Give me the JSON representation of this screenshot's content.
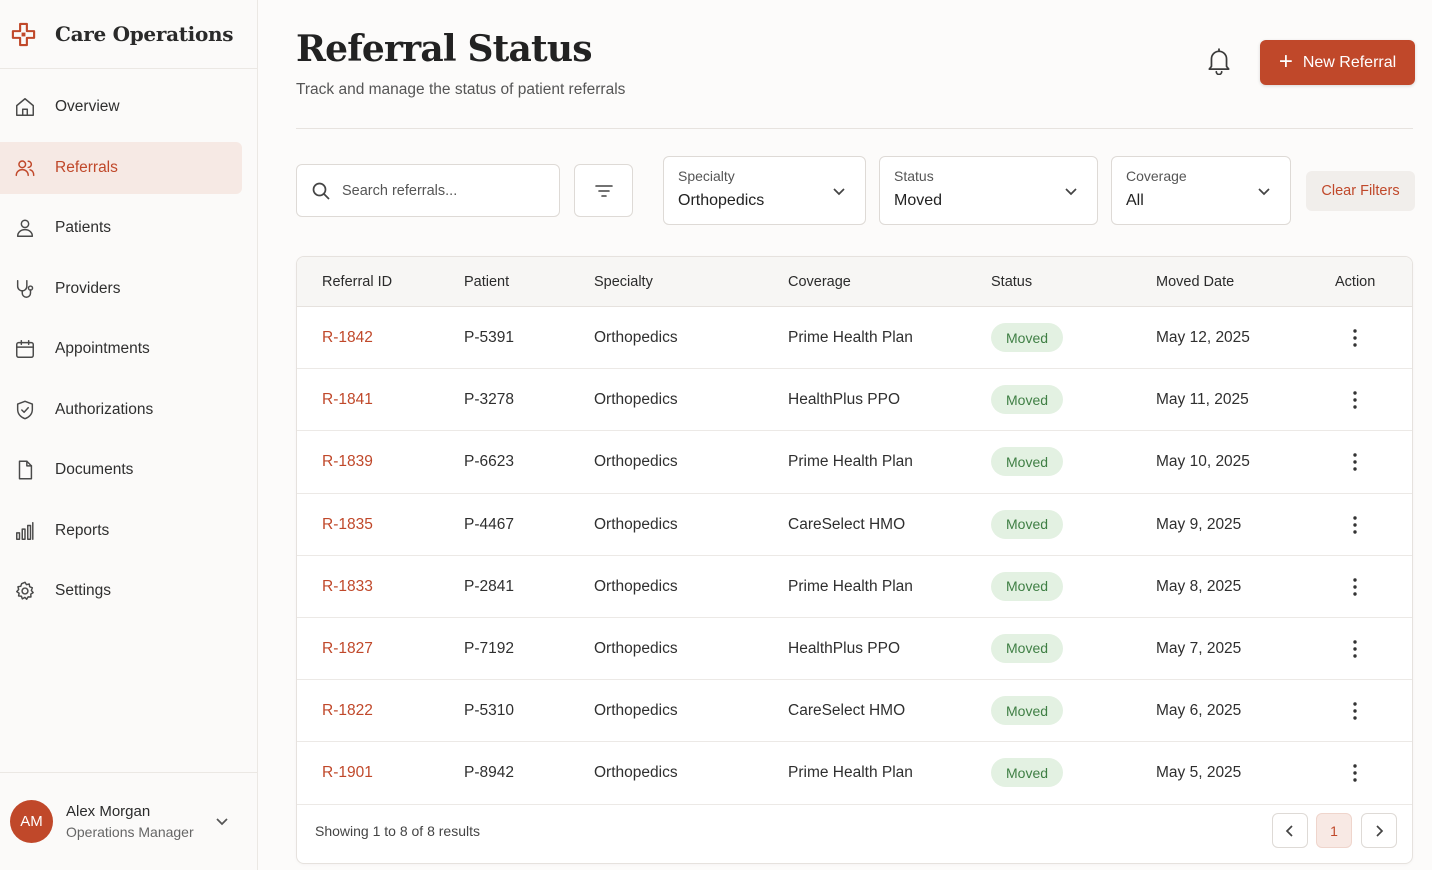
{
  "brand": {
    "title": "Care Operations",
    "icon": "medical-cross-icon",
    "accent": "#c0482a"
  },
  "sidebar": {
    "items": [
      {
        "label": "Overview",
        "icon": "home-icon",
        "active": false
      },
      {
        "label": "Referrals",
        "icon": "users-icon",
        "active": true
      },
      {
        "label": "Patients",
        "icon": "user-icon",
        "active": false
      },
      {
        "label": "Providers",
        "icon": "stethoscope-icon",
        "active": false
      },
      {
        "label": "Appointments",
        "icon": "calendar-icon",
        "active": false
      },
      {
        "label": "Authorizations",
        "icon": "shield-check-icon",
        "active": false
      },
      {
        "label": "Documents",
        "icon": "file-icon",
        "active": false
      },
      {
        "label": "Reports",
        "icon": "bar-chart-icon",
        "active": false
      },
      {
        "label": "Settings",
        "icon": "gear-icon",
        "active": false
      }
    ]
  },
  "user": {
    "initials": "AM",
    "name": "Alex Morgan",
    "role": "Operations Manager"
  },
  "header": {
    "title": "Referral Status",
    "subtitle": "Track and manage the status of patient referrals",
    "new_button": "New Referral"
  },
  "filters": {
    "search_placeholder": "Search referrals...",
    "specialty": {
      "label": "Specialty",
      "value": "Orthopedics"
    },
    "status": {
      "label": "Status",
      "value": "Moved"
    },
    "coverage": {
      "label": "Coverage",
      "value": "All"
    },
    "clear_label": "Clear Filters"
  },
  "table": {
    "columns": [
      "Referral ID",
      "Patient",
      "Specialty",
      "Coverage",
      "Status",
      "Moved Date",
      "Action"
    ],
    "rows": [
      {
        "id": "R-1842",
        "patient": "P-5391",
        "specialty": "Orthopedics",
        "coverage": "Prime Health Plan",
        "status": "Moved",
        "date": "May 12, 2025"
      },
      {
        "id": "R-1841",
        "patient": "P-3278",
        "specialty": "Orthopedics",
        "coverage": "HealthPlus PPO",
        "status": "Moved",
        "date": "May 11, 2025"
      },
      {
        "id": "R-1839",
        "patient": "P-6623",
        "specialty": "Orthopedics",
        "coverage": "Prime Health Plan",
        "status": "Moved",
        "date": "May 10, 2025"
      },
      {
        "id": "R-1835",
        "patient": "P-4467",
        "specialty": "Orthopedics",
        "coverage": "CareSelect HMO",
        "status": "Moved",
        "date": "May 9, 2025"
      },
      {
        "id": "R-1833",
        "patient": "P-2841",
        "specialty": "Orthopedics",
        "coverage": "Prime Health Plan",
        "status": "Moved",
        "date": "May 8, 2025"
      },
      {
        "id": "R-1827",
        "patient": "P-7192",
        "specialty": "Orthopedics",
        "coverage": "HealthPlus PPO",
        "status": "Moved",
        "date": "May 7, 2025"
      },
      {
        "id": "R-1822",
        "patient": "P-5310",
        "specialty": "Orthopedics",
        "coverage": "CareSelect HMO",
        "status": "Moved",
        "date": "May 6, 2025"
      },
      {
        "id": "R-1901",
        "patient": "P-8942",
        "specialty": "Orthopedics",
        "coverage": "Prime Health Plan",
        "status": "Moved",
        "date": "May 5, 2025"
      }
    ]
  },
  "pagination": {
    "summary": "Showing 1 to 8 of 8 results",
    "current_page": "1"
  }
}
